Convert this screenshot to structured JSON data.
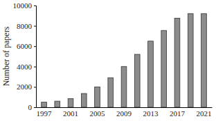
{
  "chart_data": {
    "type": "bar",
    "y_label": "Number of papers",
    "categories": [
      "1997",
      null,
      "2001",
      null,
      "2005",
      null,
      "2009",
      null,
      "2013",
      null,
      "2017",
      null,
      "2021"
    ],
    "values": [
      500,
      600,
      850,
      1350,
      2000,
      2900,
      4000,
      5200,
      6500,
      7550,
      8750,
      9200,
      9200
    ],
    "color": "#8c8c8c",
    "ylim": [
      0,
      10000
    ],
    "yticks": [
      0,
      2000,
      4000,
      6000,
      8000,
      10000
    ],
    "grid": false
  }
}
